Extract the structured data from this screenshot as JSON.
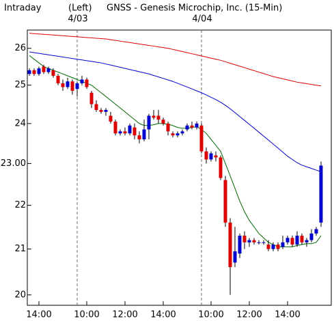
{
  "chart_data": {
    "type": "candlestick",
    "title_left": "Intraday",
    "title_mid": "(Left)",
    "title": "GNSS - Genesis Microchip, Inc.  (15-Min)",
    "log_scale": true,
    "ylim": [
      19.78,
      26.51
    ],
    "yticks": [
      20,
      21,
      22,
      {
        "value": 23,
        "label": "23.00"
      },
      24,
      25,
      26
    ],
    "up_color": "#0000cc",
    "down_color": "#dd0000",
    "categories": [
      null,
      null,
      "14:00",
      null,
      null,
      null,
      null,
      null,
      null,
      null,
      null,
      null,
      "10:00",
      null,
      null,
      null,
      null,
      null,
      null,
      null,
      "12:00",
      null,
      null,
      null,
      null,
      null,
      null,
      null,
      "14:00",
      null,
      null,
      null,
      null,
      null,
      null,
      null,
      null,
      null,
      "10:00",
      null,
      null,
      null,
      null,
      null,
      null,
      null,
      "12:00",
      null,
      null,
      null,
      null,
      null,
      null,
      null,
      "14:00",
      null,
      null,
      null,
      null,
      null,
      null,
      null
    ],
    "date_markers": [
      {
        "label": "4/03",
        "at": 10
      },
      {
        "label": "4/04",
        "at": 36
      }
    ],
    "open": [
      25.3,
      25.4,
      25.3,
      25.5,
      25.35,
      25.4,
      25.25,
      25.05,
      24.95,
      25.1,
      24.9,
      25.05,
      25.15,
      24.8,
      24.5,
      24.35,
      24.3,
      24.2,
      24.05,
      23.75,
      23.8,
      23.75,
      23.9,
      23.7,
      23.6,
      23.85,
      24.2,
      24.2,
      24.1,
      24.0,
      23.75,
      23.7,
      23.75,
      23.85,
      23.95,
      23.9,
      23.95,
      23.3,
      23.1,
      23.2,
      23.15,
      22.6,
      21.6,
      20.7,
      20.9,
      21.3,
      21.15,
      21.2,
      21.15,
      21.15,
      21.1,
      21.0,
      21.1,
      21.05,
      21.15,
      21.25,
      21.1,
      21.3,
      21.15,
      21.2,
      21.35,
      21.6
    ],
    "high": [
      25.45,
      25.45,
      25.5,
      25.55,
      25.5,
      25.45,
      25.3,
      25.15,
      25.2,
      25.15,
      25.1,
      25.25,
      25.2,
      24.85,
      24.6,
      24.4,
      24.4,
      24.3,
      24.1,
      23.85,
      23.9,
      24.0,
      24.0,
      23.8,
      24.1,
      24.25,
      24.35,
      24.35,
      24.15,
      24.05,
      23.8,
      23.8,
      23.85,
      24.0,
      24.05,
      24.05,
      24.0,
      23.4,
      23.3,
      23.3,
      23.2,
      22.7,
      21.7,
      21.5,
      21.35,
      21.4,
      21.25,
      21.25,
      21.2,
      21.2,
      21.2,
      21.15,
      21.15,
      21.3,
      21.3,
      21.3,
      21.4,
      21.35,
      21.25,
      21.45,
      21.5,
      23.05
    ],
    "low": [
      25.25,
      25.25,
      25.25,
      25.3,
      25.3,
      25.2,
      25.0,
      24.85,
      24.9,
      24.75,
      24.7,
      25.0,
      24.9,
      24.4,
      24.3,
      24.25,
      24.2,
      24.0,
      23.7,
      23.7,
      23.7,
      23.7,
      23.6,
      23.5,
      23.55,
      23.6,
      24.1,
      24.0,
      23.95,
      23.7,
      23.65,
      23.65,
      23.7,
      23.8,
      23.85,
      23.85,
      23.25,
      23.0,
      23.05,
      23.05,
      22.6,
      21.5,
      20.0,
      20.6,
      20.8,
      21.0,
      21.05,
      21.1,
      21.1,
      21.1,
      20.95,
      20.95,
      20.95,
      21.0,
      21.1,
      21.05,
      21.05,
      21.1,
      21.05,
      21.15,
      21.3,
      21.5
    ],
    "close": [
      25.4,
      25.3,
      25.45,
      25.35,
      25.45,
      25.25,
      25.05,
      24.95,
      25.1,
      24.85,
      25.05,
      25.15,
      24.95,
      24.5,
      24.35,
      24.3,
      24.35,
      24.05,
      23.75,
      23.8,
      23.75,
      23.95,
      23.7,
      23.6,
      23.85,
      24.2,
      24.15,
      24.1,
      24.0,
      23.8,
      23.7,
      23.75,
      23.8,
      23.95,
      23.9,
      24.0,
      23.3,
      23.1,
      23.25,
      23.15,
      22.65,
      21.6,
      20.6,
      20.95,
      21.3,
      21.15,
      21.2,
      21.15,
      21.15,
      21.15,
      21.0,
      21.1,
      21.0,
      21.15,
      21.25,
      21.1,
      21.3,
      21.15,
      21.2,
      21.35,
      21.45,
      22.95
    ],
    "lines": [
      {
        "color": "#dd0000",
        "values": [
          26.42,
          26.41,
          26.4,
          26.39,
          26.38,
          26.37,
          26.36,
          26.35,
          26.34,
          26.33,
          26.32,
          26.31,
          26.3,
          26.29,
          26.28,
          26.27,
          26.26,
          26.24,
          26.22,
          26.2,
          26.18,
          26.16,
          26.14,
          26.12,
          26.1,
          26.08,
          26.06,
          26.04,
          26.02,
          26.0,
          25.97,
          25.94,
          25.91,
          25.88,
          25.85,
          25.82,
          25.79,
          25.76,
          25.73,
          25.7,
          25.67,
          25.63,
          25.59,
          25.55,
          25.51,
          25.47,
          25.43,
          25.39,
          25.35,
          25.31,
          25.27,
          25.23,
          25.2,
          25.17,
          25.14,
          25.11,
          25.08,
          25.06,
          25.04,
          25.02,
          25.0,
          24.98
        ]
      },
      {
        "color": "#0000cc",
        "values": [
          25.9,
          25.88,
          25.86,
          25.84,
          25.82,
          25.8,
          25.78,
          25.76,
          25.74,
          25.72,
          25.7,
          25.68,
          25.66,
          25.64,
          25.62,
          25.6,
          25.57,
          25.54,
          25.51,
          25.48,
          25.45,
          25.42,
          25.39,
          25.36,
          25.33,
          25.3,
          25.26,
          25.22,
          25.18,
          25.14,
          25.1,
          25.05,
          25.0,
          24.95,
          24.9,
          24.85,
          24.8,
          24.74,
          24.68,
          24.62,
          24.55,
          24.47,
          24.38,
          24.28,
          24.18,
          24.08,
          23.98,
          23.88,
          23.78,
          23.68,
          23.58,
          23.48,
          23.38,
          23.28,
          23.18,
          23.1,
          23.02,
          22.96,
          22.92,
          22.88,
          22.84,
          22.8
        ]
      },
      {
        "color": "#006600",
        "values": [
          25.8,
          25.7,
          25.6,
          25.5,
          25.45,
          25.4,
          25.35,
          25.3,
          25.25,
          25.2,
          25.15,
          25.1,
          25.05,
          25.0,
          24.9,
          24.8,
          24.7,
          24.6,
          24.5,
          24.4,
          24.3,
          24.2,
          24.1,
          24.0,
          23.95,
          23.95,
          23.97,
          24.0,
          24.0,
          23.98,
          23.95,
          23.9,
          23.88,
          23.88,
          23.9,
          23.92,
          23.85,
          23.75,
          23.6,
          23.45,
          23.3,
          23.0,
          22.7,
          22.4,
          22.1,
          21.85,
          21.65,
          21.5,
          21.35,
          21.25,
          21.15,
          21.1,
          21.05,
          21.05,
          21.05,
          21.05,
          21.08,
          21.1,
          21.12,
          21.12,
          21.15,
          21.3
        ]
      }
    ]
  }
}
